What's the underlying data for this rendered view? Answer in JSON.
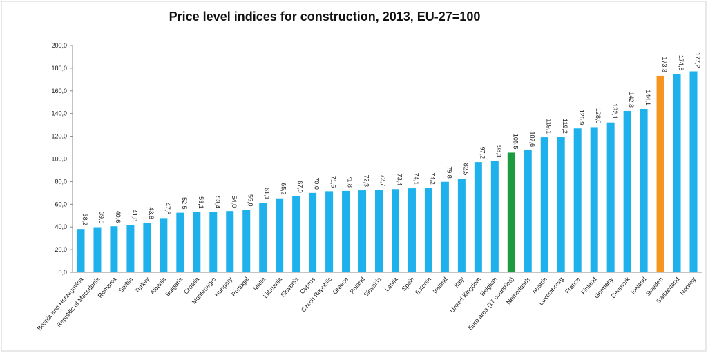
{
  "chart_data": {
    "type": "bar",
    "title": "Price level indices for construction, 2013, EU-27=100",
    "categories": [
      "Bosnia and Herzegovina",
      "Republic of Macedonia",
      "Romania",
      "Serbia",
      "Turkey",
      "Albania",
      "Bulgaria",
      "Croatia",
      "Montenegro",
      "Hungary",
      "Portugal",
      "Malta",
      "Lithuania",
      "Slovenia",
      "Cyprus",
      "Czech Republic",
      "Greece",
      "Poland",
      "Slovakia",
      "Latvia",
      "Spain",
      "Estonia",
      "Ireland",
      "Italy",
      "United Kingdom",
      "Belgium",
      "Euro area (17 countries)",
      "Netherlands",
      "Austria",
      "Luxembourg",
      "France",
      "Finland",
      "Germany",
      "Denmark",
      "Iceland",
      "Sweden",
      "Switzerland",
      "Norway"
    ],
    "values": [
      38.2,
      39.8,
      40.6,
      41.8,
      43.8,
      47.8,
      52.5,
      53.1,
      53.4,
      54.0,
      55.0,
      61.1,
      65.2,
      67.0,
      70.0,
      71.5,
      71.8,
      72.3,
      72.7,
      73.4,
      74.1,
      74.2,
      79.8,
      82.5,
      97.2,
      98.1,
      105.5,
      107.6,
      119.1,
      119.2,
      126.9,
      128.0,
      132.1,
      142.3,
      144.1,
      173.3,
      174.8,
      177.2
    ],
    "value_labels": [
      "38,2",
      "39,8",
      "40,6",
      "41,8",
      "43,8",
      "47,8",
      "52,5",
      "53,1",
      "53,4",
      "54,0",
      "55,0",
      "61,1",
      "65,2",
      "67,0",
      "70,0",
      "71,5",
      "71,8",
      "72,3",
      "72,7",
      "73,4",
      "74,1",
      "74,2",
      "79,8",
      "82,5",
      "97,2",
      "98,1",
      "105,5",
      "107,6",
      "119,1",
      "119,2",
      "126,9",
      "128,0",
      "132,1",
      "142,3",
      "144,1",
      "173,3",
      "174,8",
      "177,2"
    ],
    "colors": [
      "#1eb1ec",
      "#1eb1ec",
      "#1eb1ec",
      "#1eb1ec",
      "#1eb1ec",
      "#1eb1ec",
      "#1eb1ec",
      "#1eb1ec",
      "#1eb1ec",
      "#1eb1ec",
      "#1eb1ec",
      "#1eb1ec",
      "#1eb1ec",
      "#1eb1ec",
      "#1eb1ec",
      "#1eb1ec",
      "#1eb1ec",
      "#1eb1ec",
      "#1eb1ec",
      "#1eb1ec",
      "#1eb1ec",
      "#1eb1ec",
      "#1eb1ec",
      "#1eb1ec",
      "#1eb1ec",
      "#1eb1ec",
      "#1c9b3f",
      "#1eb1ec",
      "#1eb1ec",
      "#1eb1ec",
      "#1eb1ec",
      "#1eb1ec",
      "#1eb1ec",
      "#1eb1ec",
      "#1eb1ec",
      "#f7941d",
      "#1eb1ec",
      "#1eb1ec"
    ],
    "ylim": [
      0,
      200
    ],
    "yticks": [
      {
        "value": 0,
        "label": "0,0"
      },
      {
        "value": 20,
        "label": "20,0"
      },
      {
        "value": 40,
        "label": "40,0"
      },
      {
        "value": 60,
        "label": "60,0"
      },
      {
        "value": 80,
        "label": "80,0"
      },
      {
        "value": 100,
        "label": "100,0"
      },
      {
        "value": 120,
        "label": "120,0"
      },
      {
        "value": 140,
        "label": "140,0"
      },
      {
        "value": 160,
        "label": "160,0"
      },
      {
        "value": 180,
        "label": "180,0"
      },
      {
        "value": 200,
        "label": "200,0"
      }
    ],
    "grid": false
  }
}
